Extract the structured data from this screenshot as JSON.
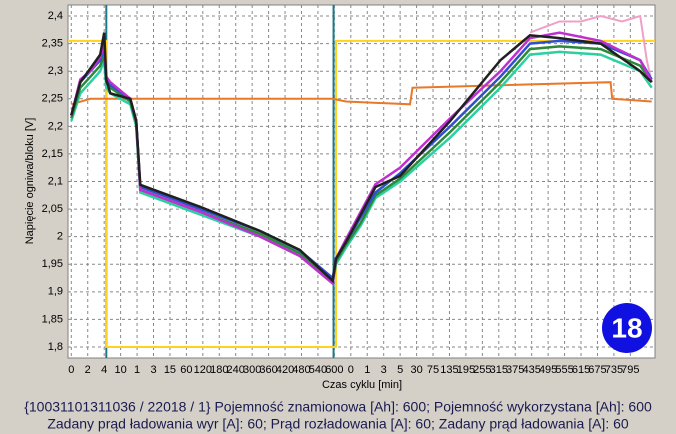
{
  "chart_data": {
    "type": "line",
    "y_label": "Napięcie ogniwa/bloku [V]",
    "x_label": "Czas cyklu [min]",
    "badge": "18",
    "footer": [
      "{10031101311036 / 22018 / 1} Pojemność znamionowa [Ah]: 600;  Pojemność wykorzystana [Ah]: 600",
      "Zadany prąd ładowania wyr [A]: 60;  Prąd rozładowania [A]: 60;  Zadany prąd ładowania [A]: 60"
    ],
    "xlim": [
      -0.2,
      35.5
    ],
    "ylim": [
      1.78,
      2.42
    ],
    "grid": true,
    "xticks": [
      {
        "value": 0,
        "label": "0"
      },
      {
        "value": 1,
        "label": "2"
      },
      {
        "value": 2,
        "label": "4"
      },
      {
        "value": 3,
        "label": "10"
      },
      {
        "value": 4,
        "label": "1"
      },
      {
        "value": 5,
        "label": "3"
      },
      {
        "value": 6,
        "label": "15"
      },
      {
        "value": 7,
        "label": "60"
      },
      {
        "value": 8,
        "label": "120"
      },
      {
        "value": 9,
        "label": "180"
      },
      {
        "value": 10,
        "label": "240"
      },
      {
        "value": 11,
        "label": "300"
      },
      {
        "value": 12,
        "label": "360"
      },
      {
        "value": 13,
        "label": "420"
      },
      {
        "value": 14,
        "label": "480"
      },
      {
        "value": 15,
        "label": "540"
      },
      {
        "value": 16,
        "label": "600"
      },
      {
        "value": 17,
        "label": "0"
      },
      {
        "value": 18,
        "label": "1"
      },
      {
        "value": 19,
        "label": "3"
      },
      {
        "value": 20,
        "label": "5"
      },
      {
        "value": 21,
        "label": "30"
      },
      {
        "value": 22,
        "label": "75"
      },
      {
        "value": 23,
        "label": "135"
      },
      {
        "value": 24,
        "label": "195"
      },
      {
        "value": 25,
        "label": "255"
      },
      {
        "value": 26,
        "label": "315"
      },
      {
        "value": 27,
        "label": "375"
      },
      {
        "value": 28,
        "label": "435"
      },
      {
        "value": 29,
        "label": "495"
      },
      {
        "value": 30,
        "label": "555"
      },
      {
        "value": 31,
        "label": "615"
      },
      {
        "value": 32,
        "label": "675"
      },
      {
        "value": 33,
        "label": "735"
      },
      {
        "value": 34,
        "label": "795"
      }
    ],
    "yticks": [
      {
        "value": 1.8,
        "label": "1,8"
      },
      {
        "value": 1.85,
        "label": "1,85"
      },
      {
        "value": 1.9,
        "label": "1,9"
      },
      {
        "value": 1.95,
        "label": "1,95"
      },
      2,
      {
        "value": 2.05,
        "label": "2,05"
      },
      {
        "value": 2.1,
        "label": "2,1"
      },
      {
        "value": 2.15,
        "label": "2,15"
      },
      {
        "value": 2.2,
        "label": "2,2"
      },
      {
        "value": 2.25,
        "label": "2,25"
      },
      {
        "value": 2.3,
        "label": "2,3"
      },
      {
        "value": 2.35,
        "label": "2,35"
      },
      {
        "value": 2.4,
        "label": "2,4"
      }
    ],
    "vlines": [
      {
        "value": 2.13,
        "color": "#1a7a8a"
      },
      {
        "value": 15.95,
        "color": "#1a7a8a"
      }
    ],
    "series": [
      {
        "color": "#ffd21f",
        "x": [
          -0.2,
          2.13,
          2.13,
          16.1,
          16.1,
          35.5
        ],
        "values": [
          2.355,
          2.355,
          1.8,
          1.8,
          2.355,
          2.355
        ]
      },
      {
        "color": "#e8782a",
        "x": [
          0,
          1.16,
          2.13,
          3.95,
          15.9,
          16.7,
          20.6,
          20.75,
          32.8,
          32.9,
          35.3
        ],
        "values": [
          2.24,
          2.25,
          2.25,
          2.25,
          2.25,
          2.245,
          2.24,
          2.27,
          2.28,
          2.25,
          2.245
        ]
      },
      {
        "color": "#f0a0c8",
        "x": [
          27.9,
          29.7,
          31,
          32.2,
          33.5,
          34.6,
          35.0,
          35.3
        ],
        "values": [
          2.37,
          2.39,
          2.39,
          2.4,
          2.39,
          2.4,
          2.32,
          2.28
        ]
      },
      {
        "color": "#2bd0a0",
        "x": [
          0,
          0.55,
          1.16,
          1.76,
          2.0,
          2.13,
          2.37,
          3.59,
          3.95,
          4.2,
          7.85,
          11.5,
          13.9,
          15.9,
          16.1,
          16.7,
          17.6,
          18.5,
          20.0,
          23.05,
          26.1,
          27.9,
          29.7,
          32.2,
          34.6,
          35.3
        ],
        "values": [
          2.21,
          2.26,
          2.28,
          2.3,
          2.32,
          2.27,
          2.26,
          2.24,
          2.2,
          2.08,
          2.04,
          2.0,
          1.965,
          1.915,
          1.95,
          1.98,
          2.02,
          2.07,
          2.1,
          2.18,
          2.27,
          2.33,
          2.335,
          2.33,
          2.3,
          2.27
        ]
      },
      {
        "color": "#2a8a3a",
        "x": [
          0,
          0.55,
          1.16,
          1.76,
          2.0,
          2.13,
          2.37,
          3.59,
          3.95,
          4.2,
          7.85,
          11.5,
          13.9,
          15.9,
          16.1,
          16.7,
          17.6,
          18.5,
          20.0,
          23.05,
          26.1,
          27.9,
          29.7,
          32.2,
          34.6,
          35.3
        ],
        "values": [
          2.215,
          2.27,
          2.29,
          2.31,
          2.33,
          2.28,
          2.27,
          2.245,
          2.205,
          2.085,
          2.045,
          2.005,
          1.97,
          1.92,
          1.955,
          1.985,
          2.025,
          2.075,
          2.105,
          2.19,
          2.28,
          2.34,
          2.345,
          2.34,
          2.31,
          2.28
        ]
      },
      {
        "color": "#3050d0",
        "x": [
          0,
          0.55,
          1.16,
          1.76,
          2.0,
          2.13,
          2.37,
          3.59,
          3.95,
          4.2,
          7.85,
          11.5,
          13.9,
          15.9,
          16.1,
          16.7,
          17.6,
          18.5,
          20.0,
          23.05,
          26.1,
          27.9,
          29.7,
          32.2,
          34.6,
          35.3
        ],
        "values": [
          2.22,
          2.28,
          2.3,
          2.32,
          2.34,
          2.285,
          2.275,
          2.25,
          2.21,
          2.09,
          2.05,
          2.01,
          1.975,
          1.925,
          1.96,
          1.99,
          2.035,
          2.08,
          2.115,
          2.2,
          2.29,
          2.35,
          2.355,
          2.35,
          2.32,
          2.285
        ]
      },
      {
        "color": "#c030d0",
        "x": [
          0,
          0.55,
          1.16,
          1.76,
          2.0,
          2.13,
          2.37,
          3.59,
          3.95,
          4.2,
          7.85,
          11.5,
          13.9,
          15.9,
          16.1,
          16.7,
          17.6,
          18.5,
          20.0,
          23.05,
          26.1,
          27.9,
          29.7,
          32.2,
          34.6,
          35.3
        ],
        "values": [
          2.22,
          2.285,
          2.3,
          2.325,
          2.35,
          2.29,
          2.28,
          2.25,
          2.21,
          2.085,
          2.045,
          2.0,
          1.965,
          1.915,
          1.96,
          1.995,
          2.045,
          2.095,
          2.125,
          2.215,
          2.3,
          2.36,
          2.37,
          2.355,
          2.32,
          2.28
        ]
      },
      {
        "color": "#202020",
        "x": [
          0,
          0.55,
          1.16,
          1.76,
          2.0,
          2.13,
          2.37,
          3.59,
          3.95,
          4.2,
          7.85,
          11.5,
          13.9,
          15.9,
          16.1,
          16.7,
          17.6,
          18.5,
          20.0,
          23.05,
          26.1,
          27.9,
          29.7,
          32.2,
          34.6,
          35.3
        ],
        "values": [
          2.22,
          2.28,
          2.305,
          2.33,
          2.37,
          2.285,
          2.26,
          2.25,
          2.21,
          2.094,
          2.054,
          2.01,
          1.976,
          1.92,
          1.96,
          1.99,
          2.04,
          2.09,
          2.11,
          2.21,
          2.32,
          2.365,
          2.36,
          2.35,
          2.3,
          2.28
        ]
      }
    ]
  }
}
